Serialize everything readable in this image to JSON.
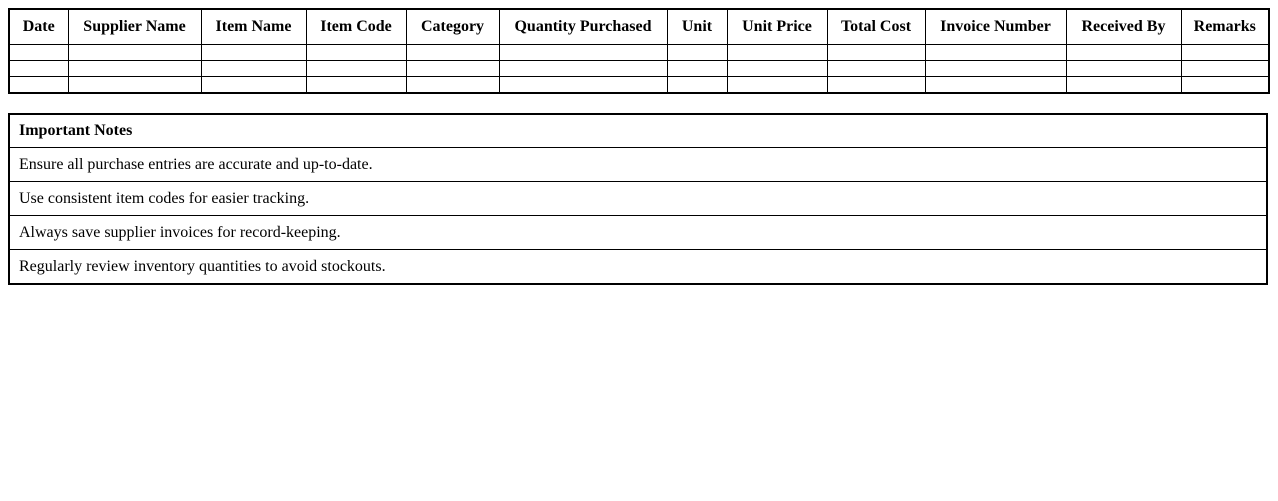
{
  "page": {
    "background_color": "#ffffff",
    "border_color": "#000000",
    "text_color": "#000000"
  },
  "purchase_table": {
    "headers": [
      "Date",
      "Supplier Name",
      "Item Name",
      "Item Code",
      "Category",
      "Quantity Purchased",
      "Unit",
      "Unit Price",
      "Total Cost",
      "Invoice Number",
      "Received By",
      "Remarks"
    ],
    "empty_row_count": 3,
    "cell_values": [
      "",
      "",
      ""
    ]
  },
  "notes": {
    "title": "Important Notes",
    "items": [
      "Ensure all purchase entries are accurate and up-to-date.",
      "Use consistent item codes for easier tracking.",
      "Always save supplier invoices for record-keeping.",
      "Regularly review inventory quantities to avoid stockouts."
    ]
  }
}
